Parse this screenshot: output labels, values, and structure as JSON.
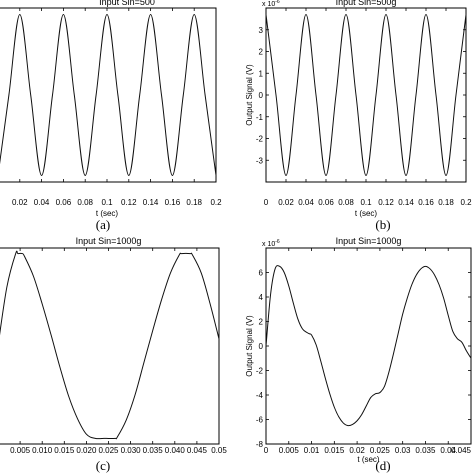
{
  "chart_data": [
    {
      "type": "line",
      "title": "Input Sin=500",
      "xlabel": "t (sec)",
      "ylabel": "",
      "y_exponent": "",
      "caption": "(a)",
      "xlim": [
        0,
        0.2
      ],
      "ylim": [
        -4,
        4
      ],
      "x_ticks": [
        "0.02",
        "0.04",
        "0.06",
        "0.08",
        "0.1",
        "0.12",
        "0.14",
        "0.16",
        "0.18",
        "0.2"
      ],
      "x_tick_values": [
        0.02,
        0.04,
        0.06,
        0.08,
        0.1,
        0.12,
        0.14,
        0.16,
        0.18,
        0.2
      ],
      "y_ticks": [],
      "y_tick_values": [],
      "series": [
        {
          "x": [
            0,
            0.01,
            0.02,
            0.03,
            0.04,
            0.05,
            0.06,
            0.07,
            0.08,
            0.09,
            0.1,
            0.11,
            0.12,
            0.13,
            0.14,
            0.15,
            0.16,
            0.17,
            0.18,
            0.19,
            0.2
          ],
          "y": [
            -3.7,
            0,
            3.7,
            0,
            -3.7,
            0,
            3.7,
            0,
            -3.7,
            0,
            3.7,
            0,
            -3.7,
            0,
            3.7,
            0,
            -3.7,
            0,
            3.7,
            0,
            -3.7
          ]
        }
      ]
    },
    {
      "type": "line",
      "title": "Input Sin=500g",
      "xlabel": "t (sec)",
      "ylabel": "Output Signal (V)",
      "y_exponent": "x 10",
      "y_exponent_power": "-6",
      "caption": "(b)",
      "xlim": [
        0,
        0.2
      ],
      "ylim": [
        -4,
        4
      ],
      "x_ticks": [
        "0",
        "0.02",
        "0.04",
        "0.06",
        "0.08",
        "0.1",
        "0.12",
        "0.14",
        "0.16",
        "0.18",
        "0.2"
      ],
      "x_tick_values": [
        0,
        0.02,
        0.04,
        0.06,
        0.08,
        0.1,
        0.12,
        0.14,
        0.16,
        0.18,
        0.2
      ],
      "y_ticks": [
        "3",
        "2",
        "1",
        "0",
        "-1",
        "-2",
        "-3"
      ],
      "y_tick_values": [
        3,
        2,
        1,
        0,
        -1,
        -2,
        -3
      ],
      "series": [
        {
          "x": [
            0,
            0.01,
            0.02,
            0.03,
            0.04,
            0.05,
            0.06,
            0.07,
            0.08,
            0.09,
            0.1,
            0.11,
            0.12,
            0.13,
            0.14,
            0.15,
            0.16,
            0.17,
            0.18,
            0.19,
            0.2
          ],
          "y": [
            3.7,
            0,
            -3.7,
            0,
            3.7,
            0,
            -3.7,
            0,
            3.7,
            0,
            -3.7,
            0,
            3.7,
            0,
            -3.7,
            0,
            3.7,
            0,
            -3.7,
            0,
            3.7
          ]
        }
      ]
    },
    {
      "type": "line",
      "title": "Input Sin=1000g",
      "xlabel": "",
      "ylabel": "",
      "y_exponent": "",
      "caption": "(c)",
      "xlim": [
        0,
        0.05
      ],
      "ylim": [
        -7,
        7
      ],
      "x_ticks": [
        "0.005",
        "0.010",
        "0.015",
        "0.020",
        "0.025",
        "0.030",
        "0.035",
        "0.040",
        "0.045",
        "0.05"
      ],
      "x_tick_values": [
        0.005,
        0.01,
        0.015,
        0.02,
        0.025,
        0.03,
        0.035,
        0.04,
        0.045,
        0.05
      ],
      "y_ticks": [],
      "y_tick_values": [],
      "series": [
        {
          "x": [
            0,
            0.002,
            0.004,
            0.0045,
            0.0055,
            0.006,
            0.008,
            0.01,
            0.012,
            0.014,
            0.016,
            0.018,
            0.02,
            0.022,
            0.024,
            0.0245,
            0.0265,
            0.027,
            0.029,
            0.031,
            0.033,
            0.035,
            0.037,
            0.039,
            0.041,
            0.0415,
            0.0435,
            0.044,
            0.046,
            0.048,
            0.05
          ],
          "y": [
            0,
            4.2,
            6.6,
            6.6,
            6.6,
            6.4,
            5.0,
            3.0,
            0.8,
            -1.5,
            -3.6,
            -5.2,
            -6.3,
            -6.6,
            -6.6,
            -6.6,
            -6.6,
            -6.5,
            -5.3,
            -3.5,
            -1.2,
            1.1,
            3.3,
            5.2,
            6.5,
            6.6,
            6.6,
            6.5,
            5.2,
            3.0,
            0.5
          ]
        }
      ]
    },
    {
      "type": "line",
      "title": "Input Sin=1000g",
      "xlabel": "t (sec)",
      "ylabel": "Output Signal (V)",
      "y_exponent": "x 10",
      "y_exponent_power": "-6",
      "caption": "(d)",
      "xlim": [
        0,
        0.045
      ],
      "ylim": [
        -8,
        8
      ],
      "x_ticks": [
        "0",
        "0.005",
        "0.01",
        "0.015",
        "0.02",
        "0.025",
        "0.03",
        "0.035",
        "0.04",
        "0.045"
      ],
      "x_tick_values": [
        0,
        0.005,
        0.01,
        0.015,
        0.02,
        0.025,
        0.03,
        0.035,
        0.04,
        0.045
      ],
      "y_ticks": [
        "6",
        "4",
        "2",
        "0",
        "-2",
        "-4",
        "-6",
        "-8"
      ],
      "y_tick_values": [
        6,
        4,
        2,
        0,
        -2,
        -4,
        -6,
        -8
      ],
      "series": [
        {
          "x": [
            0,
            0.001,
            0.002,
            0.003,
            0.004,
            0.005,
            0.006,
            0.007,
            0.008,
            0.009,
            0.0095,
            0.01,
            0.011,
            0.012,
            0.013,
            0.014,
            0.015,
            0.016,
            0.017,
            0.018,
            0.019,
            0.02,
            0.021,
            0.022,
            0.023,
            0.024,
            0.025,
            0.026,
            0.027,
            0.028,
            0.029,
            0.03,
            0.031,
            0.032,
            0.033,
            0.034,
            0.035,
            0.036,
            0.037,
            0.038,
            0.039,
            0.04,
            0.041,
            0.042,
            0.043,
            0.044,
            0.045
          ],
          "y": [
            0,
            4.2,
            6.3,
            6.5,
            6.0,
            4.9,
            3.5,
            2.2,
            1.4,
            1.1,
            1.0,
            0.9,
            0.1,
            -1.2,
            -2.6,
            -3.9,
            -5.0,
            -5.8,
            -6.3,
            -6.5,
            -6.4,
            -6.1,
            -5.6,
            -4.9,
            -4.2,
            -3.9,
            -3.8,
            -3.3,
            -2.1,
            -0.6,
            1.0,
            2.6,
            3.9,
            5.0,
            5.8,
            6.3,
            6.5,
            6.3,
            5.8,
            5.0,
            3.9,
            2.5,
            1.2,
            0.6,
            0.3,
            -0.4,
            -1.0
          ]
        }
      ]
    }
  ]
}
